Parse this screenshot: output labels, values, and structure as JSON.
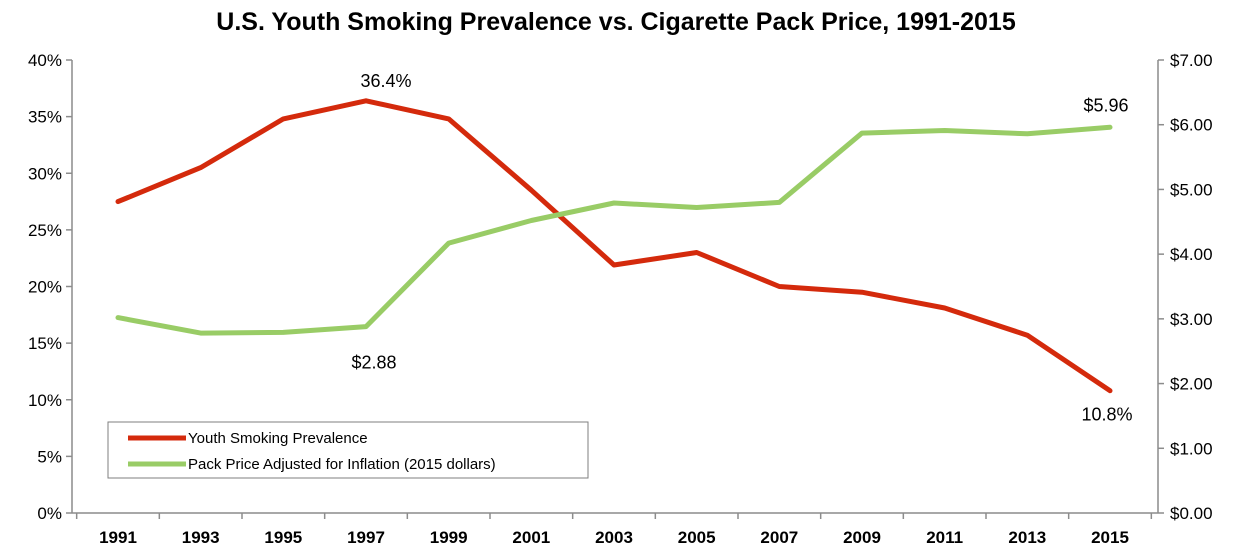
{
  "chart_data": {
    "type": "line",
    "title": "U.S. Youth Smoking Prevalence vs. Cigarette Pack Price, 1991-2015",
    "categories": [
      "1991",
      "1993",
      "1995",
      "1997",
      "1999",
      "2001",
      "2003",
      "2005",
      "2007",
      "2009",
      "2011",
      "2013",
      "2015"
    ],
    "y_left": {
      "range": [
        0,
        40
      ],
      "ticks": [
        "0%",
        "5%",
        "10%",
        "15%",
        "20%",
        "25%",
        "30%",
        "35%",
        "40%"
      ]
    },
    "y_right": {
      "range": [
        0,
        7
      ],
      "ticks": [
        "$0.00",
        "$1.00",
        "$2.00",
        "$3.00",
        "$4.00",
        "$5.00",
        "$6.00",
        "$7.00"
      ]
    },
    "series": [
      {
        "name": "Youth Smoking Prevalence",
        "axis": "left",
        "color": "#d42a0c",
        "values": [
          27.5,
          30.5,
          34.8,
          36.4,
          34.8,
          28.5,
          21.9,
          23.0,
          20.0,
          19.5,
          18.1,
          15.7,
          10.8
        ]
      },
      {
        "name": "Pack Price Adjusted for Inflation (2015 dollars)",
        "axis": "right",
        "color": "#99cc66",
        "values": [
          3.02,
          2.78,
          2.79,
          2.88,
          4.17,
          4.52,
          4.79,
          4.72,
          4.8,
          5.87,
          5.91,
          5.86,
          5.96
        ]
      }
    ],
    "annotations": [
      {
        "text": "36.4%",
        "series": 0,
        "index": 3
      },
      {
        "text": "$2.88",
        "series": 1,
        "index": 3
      },
      {
        "text": "$5.96",
        "series": 1,
        "index": 12
      },
      {
        "text": "10.8%",
        "series": 0,
        "index": 12
      }
    ],
    "legend_position": "bottom-left",
    "grid": false
  }
}
